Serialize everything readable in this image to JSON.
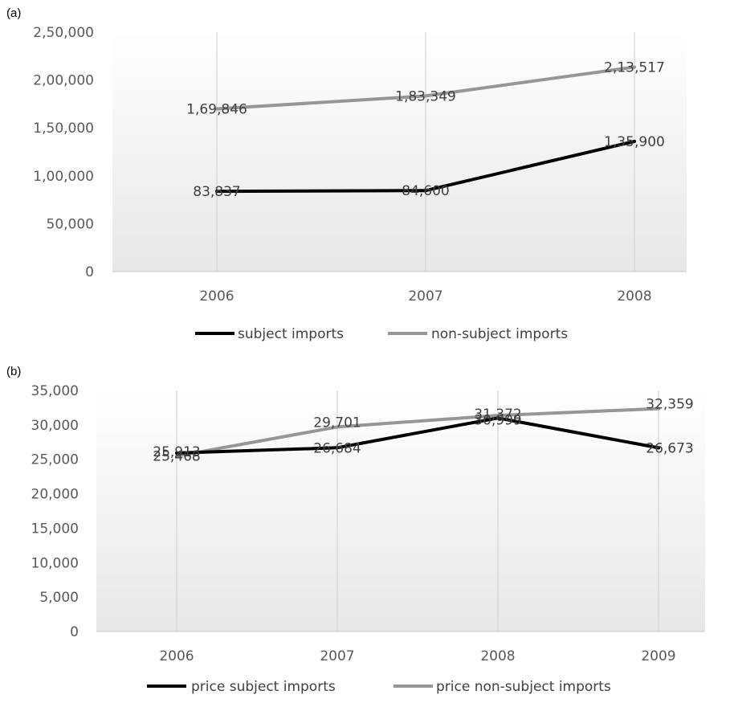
{
  "chart_data": [
    {
      "type": "line",
      "panel_label": "(a)",
      "categories": [
        "2006",
        "2007",
        "2008"
      ],
      "series": [
        {
          "name": "subject imports",
          "color": "#000000",
          "values": [
            83837,
            84600,
            135900
          ],
          "labels": [
            "83,837",
            "84,600",
            "1,35,900"
          ]
        },
        {
          "name": "non-subject imports",
          "color": "#969696",
          "values": [
            169846,
            183349,
            213517
          ],
          "labels": [
            "1,69,846",
            "1,83,349",
            "2,13,517"
          ]
        }
      ],
      "ylim": [
        0,
        250000
      ],
      "yticks": [
        "0",
        "50,000",
        "1,00,000",
        "1,50,000",
        "2,00,000",
        "2,50,000"
      ],
      "grid": false,
      "legend": "bottom"
    },
    {
      "type": "line",
      "panel_label": "(b)",
      "categories": [
        "2006",
        "2007",
        "2008",
        "2009"
      ],
      "series": [
        {
          "name": "price subject imports",
          "color": "#000000",
          "values": [
            25913,
            26684,
            30999,
            26673
          ],
          "labels": [
            "25,913",
            "26,684",
            "30,999",
            "26,673"
          ]
        },
        {
          "name": "price non-subject imports",
          "color": "#969696",
          "values": [
            25468,
            29701,
            31372,
            32359
          ],
          "labels": [
            "25,468",
            "29,701",
            "31,372",
            "32,359"
          ]
        }
      ],
      "ylim": [
        0,
        35000
      ],
      "yticks": [
        "0",
        "5,000",
        "10,000",
        "15,000",
        "20,000",
        "25,000",
        "30,000",
        "35,000"
      ],
      "grid": false,
      "legend": "bottom"
    }
  ]
}
